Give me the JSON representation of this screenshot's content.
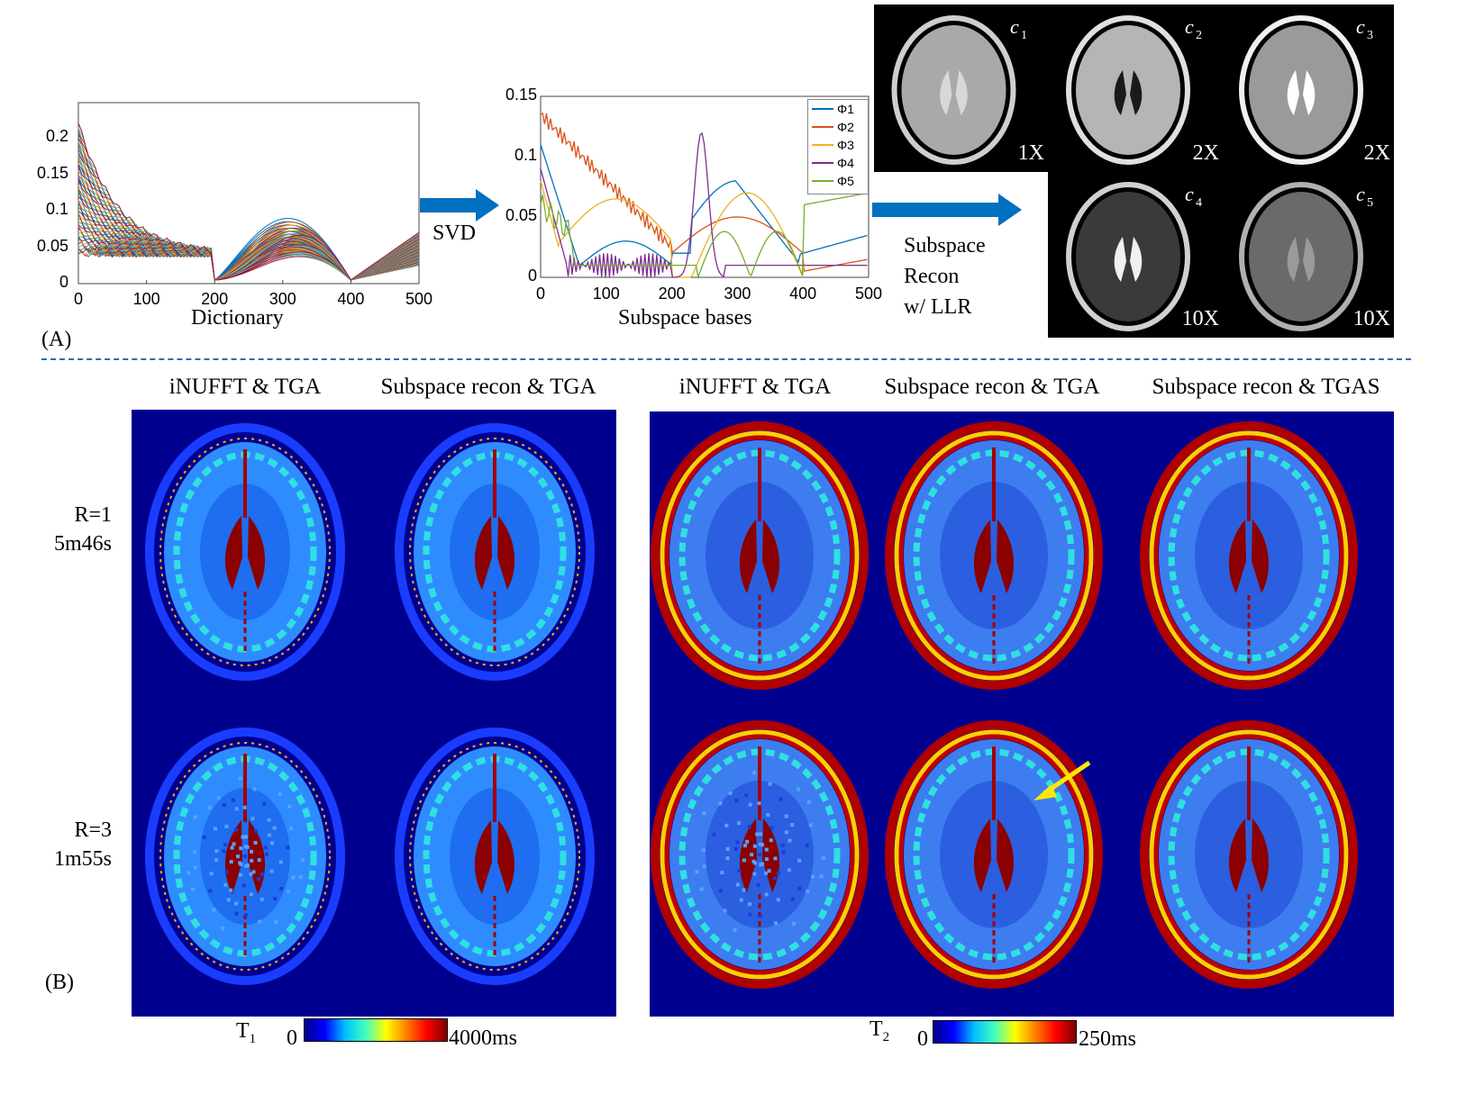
{
  "panel_a": {
    "label": "(A)",
    "dictionary_plot": {
      "xlabel": "Dictionary",
      "yticks": [
        "0",
        "0.05",
        "0.1",
        "0.15",
        "0.2"
      ],
      "xticks": [
        "0",
        "100",
        "200",
        "300",
        "400",
        "500"
      ]
    },
    "svd_arrow_label": "SVD",
    "bases_plot": {
      "xlabel": "Subspace bases",
      "yticks": [
        "0",
        "0.05",
        "0.1",
        "0.15"
      ],
      "xticks": [
        "0",
        "100",
        "200",
        "300",
        "400",
        "500"
      ],
      "legend": [
        "Φ1",
        "Φ2",
        "Φ3",
        "Φ4",
        "Φ5"
      ],
      "legend_colors": [
        "#0072bd",
        "#d95319",
        "#edb120",
        "#7e2f8e",
        "#77ac30"
      ]
    },
    "recon_label": [
      "Subspace",
      "Recon",
      "w/ LLR"
    ],
    "coefficients": [
      {
        "name": "c",
        "sub": "1",
        "scale": "1X"
      },
      {
        "name": "c",
        "sub": "2",
        "scale": "2X"
      },
      {
        "name": "c",
        "sub": "3",
        "scale": "2X"
      },
      {
        "name": "c",
        "sub": "4",
        "scale": "10X"
      },
      {
        "name": "c",
        "sub": "5",
        "scale": "10X"
      }
    ]
  },
  "panel_b": {
    "label": "(B)",
    "t1_headers": [
      "iNUFFT & TGA",
      "Subspace recon & TGA"
    ],
    "t2_headers": [
      "iNUFFT & TGA",
      "Subspace recon & TGA",
      "Subspace recon & TGAS"
    ],
    "rows": [
      {
        "r": "R=1",
        "time": "5m46s"
      },
      {
        "r": "R=3",
        "time": "1m55s"
      }
    ],
    "t1_colorbar": {
      "symbol": "T",
      "sub": "1",
      "min": "0",
      "max": "4000ms"
    },
    "t2_colorbar": {
      "symbol": "T",
      "sub": "2",
      "min": "0",
      "max": "250ms"
    }
  }
}
